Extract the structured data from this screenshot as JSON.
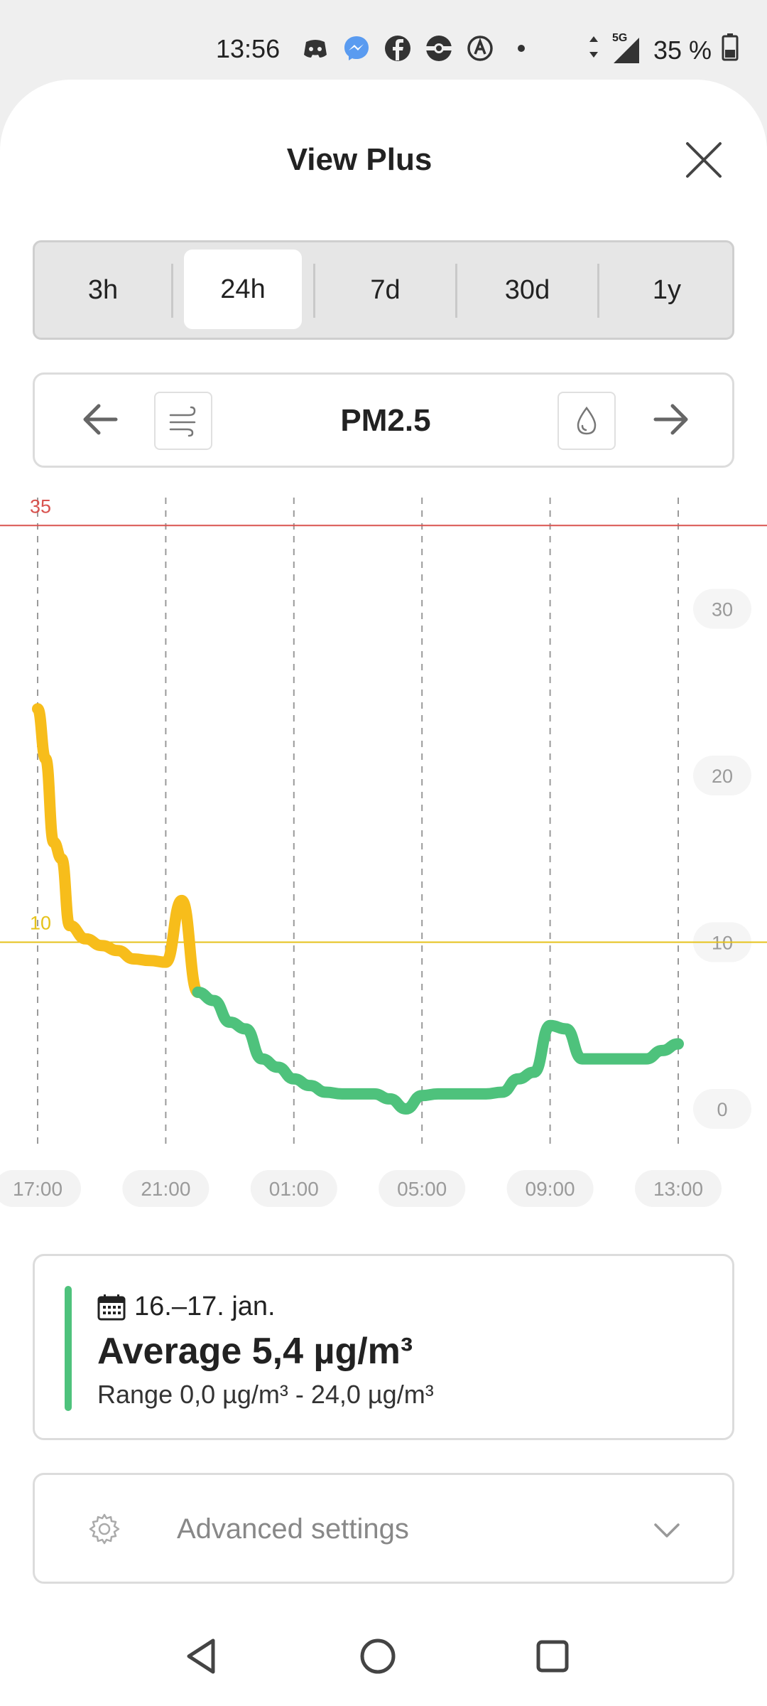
{
  "status_bar": {
    "time": "13:56",
    "battery": "35 %",
    "network": "5G",
    "notification_icons": [
      "discord-icon",
      "messenger-icon",
      "facebook-icon",
      "pokeball-icon",
      "autopilot-icon",
      "dot-icon"
    ]
  },
  "header": {
    "title": "View Plus"
  },
  "time_range": {
    "options": [
      "3h",
      "24h",
      "7d",
      "30d",
      "1y"
    ],
    "selected": "24h"
  },
  "pollutant_nav": {
    "title": "PM2.5",
    "prev_icon": "arrow-left-icon",
    "next_icon": "arrow-right-icon",
    "left_icon": "wind-icon",
    "right_icon": "humidity-drop-icon"
  },
  "chart_data": {
    "type": "line",
    "x_ticks": [
      "17:00",
      "21:00",
      "01:00",
      "05:00",
      "09:00",
      "13:00"
    ],
    "y_ticks": [
      0,
      10,
      20,
      30
    ],
    "ylim": [
      0,
      35
    ],
    "threshold_lines": [
      {
        "value": 35,
        "label": "35",
        "color": "#d9534f"
      },
      {
        "value": 10,
        "label": "10",
        "color": "#e6c21a"
      }
    ],
    "series": [
      {
        "x_hours": [
          0,
          0.25,
          0.5,
          0.75,
          1,
          1.5,
          2,
          2.5,
          3,
          3.5,
          4,
          4.5,
          5,
          5.5,
          6,
          6.5,
          7,
          7.5,
          8,
          8.5,
          9,
          9.5,
          10,
          10.5,
          11,
          11.5,
          12,
          12.5,
          13,
          13.5,
          14,
          14.5,
          15,
          15.5,
          16,
          16.5,
          17,
          17.5,
          18,
          18.5,
          19,
          19.5,
          20
        ],
        "values": [
          24,
          21,
          16,
          15,
          11,
          10.2,
          9.8,
          9.5,
          9.0,
          8.9,
          8.8,
          12.5,
          7.0,
          6.5,
          5.2,
          4.8,
          3.0,
          2.5,
          1.8,
          1.4,
          1.0,
          0.9,
          0.9,
          0.9,
          0.6,
          0.0,
          0.8,
          0.9,
          0.9,
          0.9,
          0.9,
          1.0,
          1.8,
          2.2,
          5.0,
          4.8,
          3.0,
          3.0,
          3.0,
          3.0,
          3.0,
          3.5,
          3.9
        ],
        "color_good": "#4ec27c",
        "color_moderate": "#f7bd1b",
        "moderate_threshold": 10
      }
    ],
    "grid": "vertical-dashed"
  },
  "summary": {
    "date_icon": "calendar-icon",
    "date": "16.–17. jan.",
    "average": "Average 5,4 µg/m³",
    "range": "Range 0,0 µg/m³ - 24,0 µg/m³",
    "status_color": "#4ec27c"
  },
  "advanced": {
    "icon": "gear-icon",
    "label": "Advanced settings",
    "chevron": "chevron-down-icon"
  },
  "nav_bar": {
    "back": "back-triangle-icon",
    "home": "home-circle-icon",
    "recents": "recents-square-icon"
  }
}
